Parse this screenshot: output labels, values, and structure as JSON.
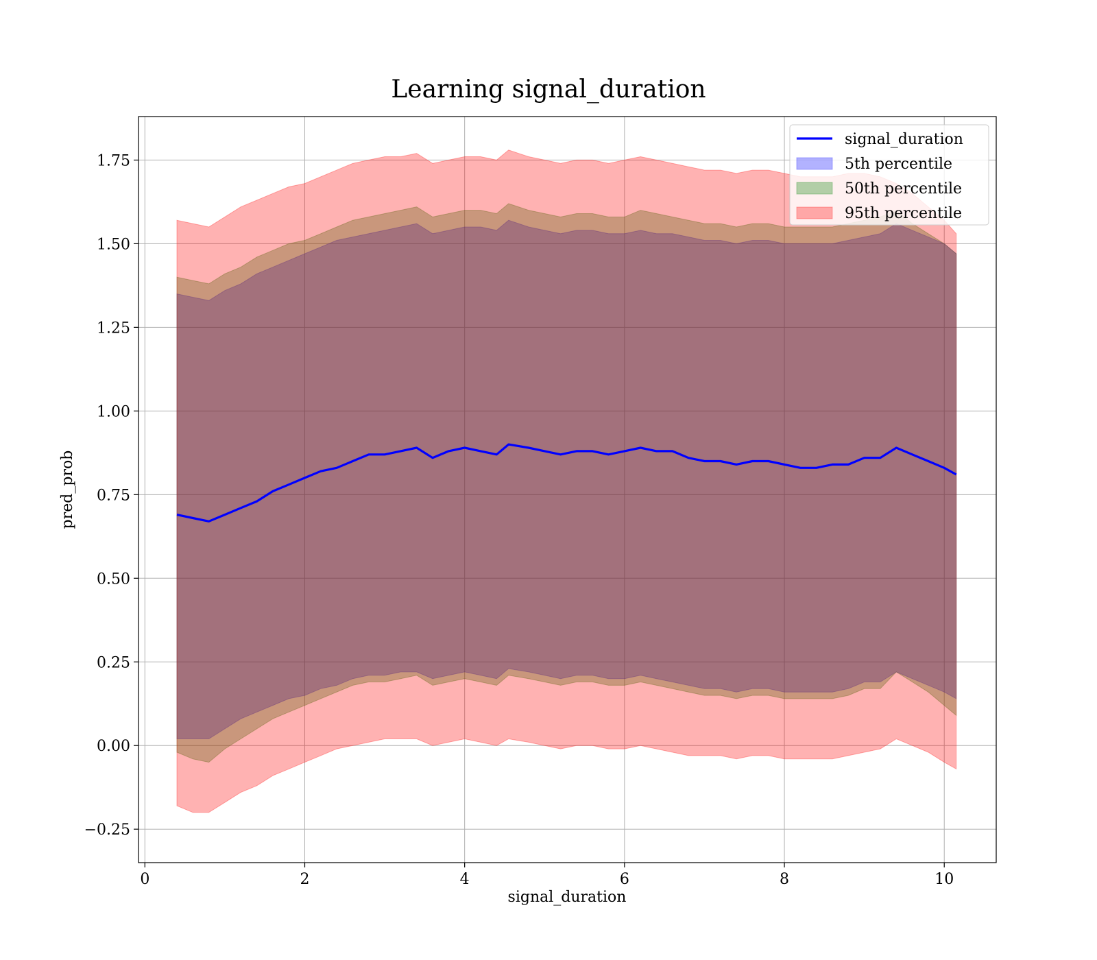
{
  "chart_data": {
    "type": "line",
    "title": "Learning signal_duration",
    "xlabel": "signal_duration",
    "ylabel": "pred_prob",
    "xlim": [
      -0.08,
      10.65
    ],
    "ylim": [
      -0.35,
      1.88
    ],
    "xticks": [
      0,
      2,
      4,
      6,
      8,
      10
    ],
    "xtick_labels": [
      "0",
      "2",
      "4",
      "6",
      "8",
      "10"
    ],
    "yticks": [
      -0.25,
      0,
      0.25,
      0.5,
      0.75,
      1.0,
      1.25,
      1.5,
      1.75
    ],
    "ytick_labels": [
      "−0.25",
      "0.00",
      "0.25",
      "0.50",
      "0.75",
      "1.00",
      "1.25",
      "1.50",
      "1.75"
    ],
    "grid": true,
    "legend_position": "top-right",
    "x": [
      0.4,
      0.6,
      0.8,
      1.0,
      1.2,
      1.4,
      1.6,
      1.8,
      2.0,
      2.2,
      2.4,
      2.6,
      2.8,
      3.0,
      3.2,
      3.4,
      3.6,
      3.8,
      4.0,
      4.2,
      4.4,
      4.55,
      4.8,
      5.0,
      5.2,
      5.4,
      5.6,
      5.8,
      6.0,
      6.2,
      6.4,
      6.6,
      6.8,
      7.0,
      7.2,
      7.4,
      7.6,
      7.8,
      8.0,
      8.2,
      8.4,
      8.6,
      8.8,
      9.0,
      9.2,
      9.4,
      9.6,
      9.8,
      10.0,
      10.15
    ],
    "series": [
      {
        "name": "signal_duration",
        "color": "#0000ff",
        "kind": "line",
        "values": [
          0.69,
          0.68,
          0.67,
          0.69,
          0.71,
          0.73,
          0.76,
          0.78,
          0.8,
          0.82,
          0.83,
          0.85,
          0.87,
          0.87,
          0.88,
          0.89,
          0.86,
          0.88,
          0.89,
          0.88,
          0.87,
          0.9,
          0.89,
          0.88,
          0.87,
          0.88,
          0.88,
          0.87,
          0.88,
          0.89,
          0.88,
          0.88,
          0.86,
          0.85,
          0.85,
          0.84,
          0.85,
          0.85,
          0.84,
          0.83,
          0.83,
          0.84,
          0.84,
          0.86,
          0.86,
          0.89,
          0.87,
          0.85,
          0.83,
          0.81
        ]
      },
      {
        "name": "5th percentile",
        "color": "#0000ff",
        "kind": "band",
        "lower": [
          0.02,
          0.02,
          0.02,
          0.05,
          0.08,
          0.1,
          0.12,
          0.14,
          0.15,
          0.17,
          0.18,
          0.2,
          0.21,
          0.21,
          0.22,
          0.22,
          0.2,
          0.21,
          0.22,
          0.21,
          0.2,
          0.23,
          0.22,
          0.21,
          0.2,
          0.21,
          0.21,
          0.2,
          0.2,
          0.21,
          0.2,
          0.19,
          0.18,
          0.17,
          0.17,
          0.16,
          0.17,
          0.17,
          0.16,
          0.16,
          0.16,
          0.16,
          0.17,
          0.19,
          0.19,
          0.22,
          0.2,
          0.18,
          0.16,
          0.14
        ],
        "upper": [
          1.35,
          1.34,
          1.33,
          1.36,
          1.38,
          1.41,
          1.43,
          1.45,
          1.47,
          1.49,
          1.51,
          1.52,
          1.53,
          1.54,
          1.55,
          1.56,
          1.53,
          1.54,
          1.55,
          1.55,
          1.54,
          1.57,
          1.55,
          1.54,
          1.53,
          1.54,
          1.54,
          1.53,
          1.53,
          1.54,
          1.53,
          1.53,
          1.52,
          1.51,
          1.51,
          1.5,
          1.51,
          1.51,
          1.5,
          1.5,
          1.5,
          1.5,
          1.51,
          1.52,
          1.53,
          1.56,
          1.54,
          1.52,
          1.5,
          1.47
        ]
      },
      {
        "name": "50th percentile",
        "color": "#008000",
        "kind": "band",
        "lower": [
          -0.02,
          -0.04,
          -0.05,
          -0.01,
          0.02,
          0.05,
          0.08,
          0.1,
          0.12,
          0.14,
          0.16,
          0.18,
          0.19,
          0.19,
          0.2,
          0.21,
          0.18,
          0.19,
          0.2,
          0.19,
          0.18,
          0.21,
          0.2,
          0.19,
          0.18,
          0.19,
          0.19,
          0.18,
          0.18,
          0.19,
          0.18,
          0.17,
          0.16,
          0.15,
          0.15,
          0.14,
          0.15,
          0.15,
          0.14,
          0.14,
          0.14,
          0.14,
          0.15,
          0.17,
          0.17,
          0.22,
          0.19,
          0.16,
          0.12,
          0.09
        ],
        "upper": [
          1.4,
          1.39,
          1.38,
          1.41,
          1.43,
          1.46,
          1.48,
          1.5,
          1.51,
          1.53,
          1.55,
          1.57,
          1.58,
          1.59,
          1.6,
          1.61,
          1.58,
          1.59,
          1.6,
          1.6,
          1.59,
          1.62,
          1.6,
          1.59,
          1.58,
          1.59,
          1.59,
          1.58,
          1.58,
          1.6,
          1.59,
          1.58,
          1.57,
          1.56,
          1.56,
          1.55,
          1.56,
          1.56,
          1.55,
          1.55,
          1.55,
          1.55,
          1.56,
          1.57,
          1.58,
          1.6,
          1.56,
          1.53,
          1.5,
          1.47
        ]
      },
      {
        "name": "95th percentile",
        "color": "#ff0000",
        "kind": "band",
        "lower": [
          -0.18,
          -0.2,
          -0.2,
          -0.17,
          -0.14,
          -0.12,
          -0.09,
          -0.07,
          -0.05,
          -0.03,
          -0.01,
          0.0,
          0.01,
          0.02,
          0.02,
          0.02,
          0.0,
          0.01,
          0.02,
          0.01,
          0.0,
          0.02,
          0.01,
          0.0,
          -0.01,
          0.0,
          0.0,
          -0.01,
          -0.01,
          0.0,
          -0.01,
          -0.02,
          -0.03,
          -0.03,
          -0.03,
          -0.04,
          -0.03,
          -0.03,
          -0.04,
          -0.04,
          -0.04,
          -0.04,
          -0.03,
          -0.02,
          -0.01,
          0.02,
          0.0,
          -0.02,
          -0.05,
          -0.07
        ],
        "upper": [
          1.57,
          1.56,
          1.55,
          1.58,
          1.61,
          1.63,
          1.65,
          1.67,
          1.68,
          1.7,
          1.72,
          1.74,
          1.75,
          1.76,
          1.76,
          1.77,
          1.74,
          1.75,
          1.76,
          1.76,
          1.75,
          1.78,
          1.76,
          1.75,
          1.74,
          1.75,
          1.75,
          1.74,
          1.75,
          1.76,
          1.75,
          1.74,
          1.73,
          1.72,
          1.72,
          1.71,
          1.72,
          1.72,
          1.71,
          1.7,
          1.7,
          1.7,
          1.71,
          1.71,
          1.7,
          1.68,
          1.65,
          1.61,
          1.57,
          1.53
        ]
      }
    ]
  }
}
